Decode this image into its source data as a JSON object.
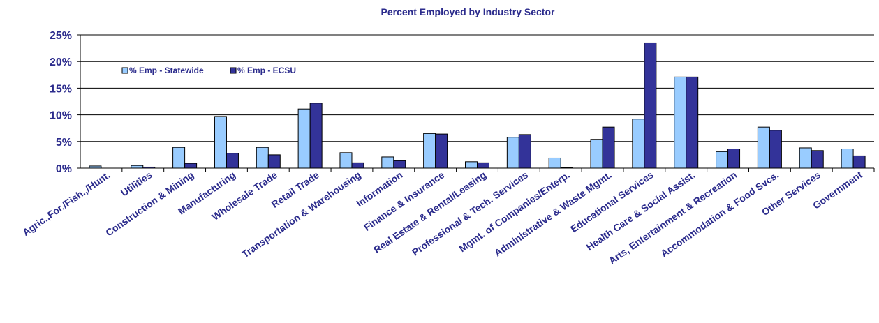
{
  "chart_data": {
    "type": "bar",
    "title": "Percent Employed by Industry Sector",
    "xlabel": "",
    "ylabel": "",
    "ylim": [
      0,
      25
    ],
    "yticks": [
      "0%",
      "5%",
      "10%",
      "15%",
      "20%",
      "25%"
    ],
    "ytick_values": [
      0,
      5,
      10,
      15,
      20,
      25
    ],
    "grid": true,
    "legend_position": "top-left",
    "categories": [
      "Agric.,For./Fish.,/Hunt.",
      "Utilities",
      "Construction & Mining",
      "Manufacturing",
      "Wholesale Trade",
      "Retail Trade",
      "Transportation & Warehousing",
      "Information",
      "Finance & Insurance",
      "Real Estate & Rental/Leasing",
      "Professional & Tech. Services",
      "Mgmt. of Companies/Enterp.",
      "Administrative & Waste Mgmt.",
      "Educational Services",
      "Health Care & Social Assist.",
      "Arts, Entertainment & Recreation",
      "Accommodation & Food Svcs.",
      "Other Services",
      "Government"
    ],
    "series": [
      {
        "name": "% Emp - Statewide",
        "color": "#99ccff",
        "values": [
          0.4,
          0.5,
          3.9,
          9.7,
          3.9,
          11.1,
          2.9,
          2.1,
          6.5,
          1.2,
          5.8,
          1.9,
          5.4,
          9.2,
          17.1,
          3.1,
          7.7,
          3.8,
          3.6
        ]
      },
      {
        "name": "% Emp - ECSU",
        "color": "#333399",
        "values": [
          0.0,
          0.2,
          0.9,
          2.8,
          2.5,
          12.2,
          1.0,
          1.4,
          6.4,
          1.0,
          6.3,
          0.1,
          7.7,
          23.5,
          17.1,
          3.6,
          7.1,
          3.3,
          2.3
        ]
      }
    ]
  }
}
